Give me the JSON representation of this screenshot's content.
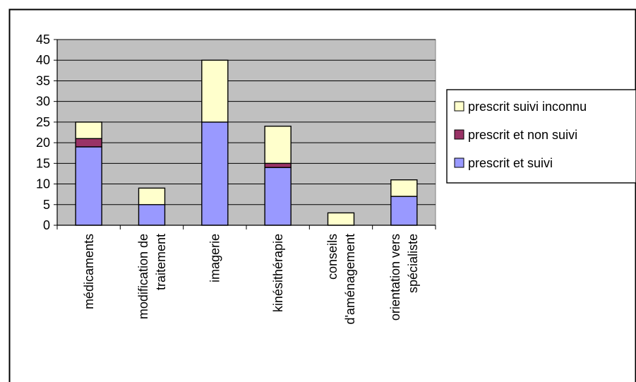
{
  "chart_data": {
    "type": "bar",
    "stacked": true,
    "categories": [
      [
        "médicaments"
      ],
      [
        "modification de",
        "traitement"
      ],
      [
        "imagerie"
      ],
      [
        "kinésithérapie"
      ],
      [
        "conseils",
        "d'aménagement"
      ],
      [
        "orientation vers",
        "spécialiste"
      ]
    ],
    "series": [
      {
        "name": "prescrit et suivi",
        "color": "#9999FF",
        "values": [
          19,
          5,
          25,
          14,
          0,
          7
        ]
      },
      {
        "name": "prescrit et non suivi",
        "color": "#993366",
        "values": [
          2,
          0,
          0,
          1,
          0,
          0
        ]
      },
      {
        "name": "prescrit suivi inconnu",
        "color": "#FFFFCC",
        "values": [
          4,
          4,
          15,
          9,
          3,
          4
        ]
      }
    ],
    "legend_order": [
      2,
      1,
      0
    ],
    "yticks": [
      "0",
      "5",
      "10",
      "15",
      "20",
      "25",
      "30",
      "35",
      "40",
      "45"
    ],
    "ylim": [
      0,
      45
    ],
    "grid": true,
    "plot_background": "#C0C0C0",
    "legend_position": "right"
  }
}
